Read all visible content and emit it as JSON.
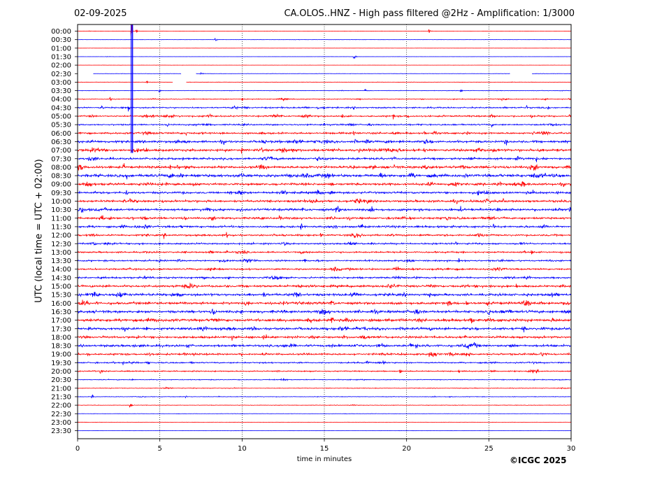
{
  "header": {
    "date": "02-09-2025",
    "title": "CA.OLOS..HNZ - High pass filtered @2Hz - Amplification: 1/3000"
  },
  "footer": {
    "copyright": "©ICGC 2025"
  },
  "colors": {
    "red_trace": "#ff0000",
    "blue_trace": "#0000ff",
    "axis": "#000000",
    "background": "#ffffff"
  },
  "chart_data": {
    "type": "line",
    "title": "CA.OLOS..HNZ - High pass filtered @2Hz - Amplification: 1/3000",
    "xlabel": "time in minutes",
    "ylabel": "UTC (local time = UTC + 02:00)",
    "xlim": [
      0,
      30
    ],
    "xticks": [
      "0",
      "5",
      "10",
      "15",
      "20",
      "25",
      "30"
    ],
    "vertical_gridlines_at": [
      5,
      10,
      15,
      20,
      25
    ],
    "grid": "vertical dotted",
    "trace_color_cycle": [
      "red",
      "blue"
    ],
    "rows": [
      "00:00",
      "00:30",
      "01:00",
      "01:30",
      "02:00",
      "02:30",
      "03:00",
      "03:30",
      "04:00",
      "04:30",
      "05:00",
      "05:30",
      "06:00",
      "06:30",
      "07:00",
      "07:30",
      "08:00",
      "08:30",
      "09:00",
      "09:30",
      "10:00",
      "10:30",
      "11:00",
      "11:30",
      "12:00",
      "12:30",
      "13:00",
      "13:30",
      "14:00",
      "14:30",
      "15:00",
      "15:30",
      "16:00",
      "16:30",
      "17:00",
      "17:30",
      "18:00",
      "18:30",
      "19:00",
      "19:30",
      "20:00",
      "20:30",
      "21:00",
      "21:30",
      "22:00",
      "22:30",
      "23:00",
      "23:30"
    ],
    "noise_level": [
      0.3,
      0.3,
      0.2,
      0.2,
      0.2,
      0.4,
      0.5,
      0.6,
      1.0,
      1.6,
      1.8,
      1.8,
      2.2,
      2.8,
      3.0,
      2.6,
      3.0,
      3.4,
      2.8,
      2.6,
      2.6,
      2.8,
      2.6,
      2.4,
      2.2,
      2.0,
      1.9,
      1.9,
      2.0,
      2.1,
      2.6,
      2.9,
      3.0,
      3.0,
      3.2,
      3.0,
      2.6,
      2.7,
      2.2,
      1.6,
      1.4,
      1.0,
      0.8,
      0.7,
      0.6,
      0.4,
      0.3,
      0.3
    ],
    "gaps": [
      {
        "row": "02:30",
        "start": 0,
        "end": 0.95
      },
      {
        "row": "02:30",
        "start": 6.3,
        "end": 7.2
      },
      {
        "row": "02:30",
        "start": 26.3,
        "end": 27.6
      },
      {
        "row": "03:00",
        "start": 5.8,
        "end": 6.6
      }
    ],
    "events": [
      {
        "row": "00:00",
        "minute": 3.3,
        "amplitude": 100
      },
      {
        "row": "00:00",
        "minute": 3.6,
        "amplitude": 3
      },
      {
        "row": "00:00",
        "minute": 11.8,
        "amplitude": 5
      },
      {
        "row": "00:00",
        "minute": 21.4,
        "amplitude": 4
      },
      {
        "row": "00:30",
        "minute": 8.4,
        "amplitude": 5
      },
      {
        "row": "01:30",
        "minute": 16.8,
        "amplitude": 6
      },
      {
        "row": "02:30",
        "minute": 7.5,
        "amplitude": 3
      },
      {
        "row": "03:00",
        "minute": 4.2,
        "amplitude": 3
      },
      {
        "row": "03:30",
        "minute": 5.0,
        "amplitude": 4
      },
      {
        "row": "03:30",
        "minute": 17.5,
        "amplitude": 4
      },
      {
        "row": "03:30",
        "minute": 23.3,
        "amplitude": 6
      },
      {
        "row": "04:00",
        "minute": 2.0,
        "amplitude": 4
      },
      {
        "row": "04:00",
        "minute": 10.0,
        "amplitude": 4
      },
      {
        "row": "04:00",
        "minute": 29.9,
        "amplitude": 3
      },
      {
        "row": "04:30",
        "minute": 1.5,
        "amplitude": 5
      },
      {
        "row": "04:30",
        "minute": 3.1,
        "amplitude": 7
      },
      {
        "row": "04:30",
        "minute": 14.6,
        "amplitude": 5
      },
      {
        "row": "04:30",
        "minute": 27.3,
        "amplitude": 4
      },
      {
        "row": "04:30",
        "minute": 28.6,
        "amplitude": 5
      },
      {
        "row": "05:00",
        "minute": 0.9,
        "amplitude": 6
      },
      {
        "row": "05:00",
        "minute": 16.1,
        "amplitude": 6
      },
      {
        "row": "05:00",
        "minute": 19.2,
        "amplitude": 6
      },
      {
        "row": "05:00",
        "minute": 27.6,
        "amplitude": 5
      },
      {
        "row": "05:00",
        "minute": 29.9,
        "amplitude": 5
      },
      {
        "row": "05:30",
        "minute": 5.5,
        "amplitude": 5
      },
      {
        "row": "05:30",
        "minute": 15.0,
        "amplitude": 4
      },
      {
        "row": "05:30",
        "minute": 25.2,
        "amplitude": 5
      },
      {
        "row": "06:00",
        "minute": 6.6,
        "amplitude": 5
      },
      {
        "row": "06:00",
        "minute": 16.8,
        "amplitude": 5
      },
      {
        "row": "06:00",
        "minute": 21.1,
        "amplitude": 5
      },
      {
        "row": "06:30",
        "minute": 6.6,
        "amplitude": 6
      },
      {
        "row": "06:30",
        "minute": 13.0,
        "amplitude": 6
      },
      {
        "row": "06:30",
        "minute": 16.9,
        "amplitude": 7
      },
      {
        "row": "06:30",
        "minute": 26.0,
        "amplitude": 8
      },
      {
        "row": "06:30",
        "minute": 29.7,
        "amplitude": 6
      },
      {
        "row": "07:00",
        "minute": 1.5,
        "amplitude": 7
      },
      {
        "row": "07:00",
        "minute": 10.0,
        "amplitude": 6
      },
      {
        "row": "07:00",
        "minute": 11.2,
        "amplitude": 7
      },
      {
        "row": "07:00",
        "minute": 17.1,
        "amplitude": 7
      },
      {
        "row": "07:00",
        "minute": 21.1,
        "amplitude": 6
      },
      {
        "row": "07:30",
        "minute": 11.8,
        "amplitude": 6
      },
      {
        "row": "07:30",
        "minute": 27.9,
        "amplitude": 6
      },
      {
        "row": "08:00",
        "minute": 2.8,
        "amplitude": 8
      },
      {
        "row": "08:00",
        "minute": 19.3,
        "amplitude": 6
      },
      {
        "row": "08:00",
        "minute": 29.9,
        "amplitude": 6
      },
      {
        "row": "08:30",
        "minute": 3.0,
        "amplitude": 9
      },
      {
        "row": "08:30",
        "minute": 6.3,
        "amplitude": 8
      },
      {
        "row": "08:30",
        "minute": 17.9,
        "amplitude": 6
      },
      {
        "row": "09:00",
        "minute": 5.4,
        "amplitude": 6
      },
      {
        "row": "09:00",
        "minute": 23.0,
        "amplitude": 6
      },
      {
        "row": "09:30",
        "minute": 14.6,
        "amplitude": 6
      },
      {
        "row": "09:30",
        "minute": 27.7,
        "amplitude": 5
      },
      {
        "row": "10:00",
        "minute": 3.2,
        "amplitude": 7
      },
      {
        "row": "10:00",
        "minute": 25.9,
        "amplitude": 6
      },
      {
        "row": "10:30",
        "minute": 9.9,
        "amplitude": 7
      },
      {
        "row": "10:30",
        "minute": 23.3,
        "amplitude": 8
      },
      {
        "row": "10:30",
        "minute": 29.9,
        "amplitude": 8
      },
      {
        "row": "11:00",
        "minute": 1.5,
        "amplitude": 9
      },
      {
        "row": "11:00",
        "minute": 11.2,
        "amplitude": 6
      },
      {
        "row": "11:00",
        "minute": 12.3,
        "amplitude": 6
      },
      {
        "row": "11:30",
        "minute": 13.6,
        "amplitude": 7
      },
      {
        "row": "11:30",
        "minute": 17.3,
        "amplitude": 6
      },
      {
        "row": "11:30",
        "minute": 25.3,
        "amplitude": 6
      },
      {
        "row": "12:00",
        "minute": 5.3,
        "amplitude": 6
      },
      {
        "row": "12:00",
        "minute": 9.1,
        "amplitude": 6
      },
      {
        "row": "12:00",
        "minute": 14.8,
        "amplitude": 6
      },
      {
        "row": "12:30",
        "minute": 3.8,
        "amplitude": 5
      },
      {
        "row": "12:30",
        "minute": 17.9,
        "amplitude": 5
      },
      {
        "row": "12:30",
        "minute": 23.0,
        "amplitude": 5
      },
      {
        "row": "13:00",
        "minute": 27.6,
        "amplitude": 6
      },
      {
        "row": "13:00",
        "minute": 29.4,
        "amplitude": 5
      },
      {
        "row": "13:30",
        "minute": 5.0,
        "amplitude": 6
      },
      {
        "row": "13:30",
        "minute": 13.8,
        "amplitude": 6
      },
      {
        "row": "13:30",
        "minute": 23.2,
        "amplitude": 6
      },
      {
        "row": "14:00",
        "minute": 3.2,
        "amplitude": 5
      },
      {
        "row": "14:00",
        "minute": 15.6,
        "amplitude": 7
      },
      {
        "row": "14:00",
        "minute": 21.6,
        "amplitude": 5
      },
      {
        "row": "14:30",
        "minute": 9.2,
        "amplitude": 5
      },
      {
        "row": "14:30",
        "minute": 20.6,
        "amplitude": 5
      },
      {
        "row": "15:00",
        "minute": 6.0,
        "amplitude": 6
      },
      {
        "row": "15:00",
        "minute": 26.7,
        "amplitude": 5
      },
      {
        "row": "15:30",
        "minute": 16.9,
        "amplitude": 6
      },
      {
        "row": "15:30",
        "minute": 21.4,
        "amplitude": 6
      },
      {
        "row": "16:00",
        "minute": 0.6,
        "amplitude": 5
      },
      {
        "row": "16:00",
        "minute": 24.9,
        "amplitude": 6
      },
      {
        "row": "16:30",
        "minute": 12.6,
        "amplitude": 6
      },
      {
        "row": "16:30",
        "minute": 22.4,
        "amplitude": 5
      },
      {
        "row": "17:00",
        "minute": 4.3,
        "amplitude": 6
      },
      {
        "row": "17:00",
        "minute": 17.8,
        "amplitude": 6
      },
      {
        "row": "17:00",
        "minute": 25.6,
        "amplitude": 5
      },
      {
        "row": "17:30",
        "minute": 0.7,
        "amplitude": 6
      },
      {
        "row": "17:30",
        "minute": 4.2,
        "amplitude": 6
      },
      {
        "row": "17:30",
        "minute": 19.6,
        "amplitude": 5
      },
      {
        "row": "18:00",
        "minute": 9.4,
        "amplitude": 6
      },
      {
        "row": "18:00",
        "minute": 16.2,
        "amplitude": 6
      },
      {
        "row": "18:00",
        "minute": 23.6,
        "amplitude": 5
      },
      {
        "row": "18:30",
        "minute": 3.4,
        "amplitude": 6
      },
      {
        "row": "18:30",
        "minute": 20.6,
        "amplitude": 6
      },
      {
        "row": "18:30",
        "minute": 23.4,
        "amplitude": 5
      },
      {
        "row": "19:00",
        "minute": 0.6,
        "amplitude": 5
      },
      {
        "row": "19:00",
        "minute": 7.1,
        "amplitude": 5
      },
      {
        "row": "19:00",
        "minute": 21.4,
        "amplitude": 5
      },
      {
        "row": "19:30",
        "minute": 2.8,
        "amplitude": 5
      },
      {
        "row": "19:30",
        "minute": 4.3,
        "amplitude": 6
      },
      {
        "row": "19:30",
        "minute": 17.6,
        "amplitude": 6
      },
      {
        "row": "20:00",
        "minute": 1.4,
        "amplitude": 6
      },
      {
        "row": "20:00",
        "minute": 19.6,
        "amplitude": 7
      },
      {
        "row": "20:00",
        "minute": 23.2,
        "amplitude": 4
      },
      {
        "row": "21:30",
        "minute": 0.9,
        "amplitude": 5
      },
      {
        "row": "21:30",
        "minute": 6.6,
        "amplitude": 4
      },
      {
        "row": "21:30",
        "minute": 22.6,
        "amplitude": 4
      },
      {
        "row": "22:00",
        "minute": 3.2,
        "amplitude": 4
      }
    ]
  }
}
